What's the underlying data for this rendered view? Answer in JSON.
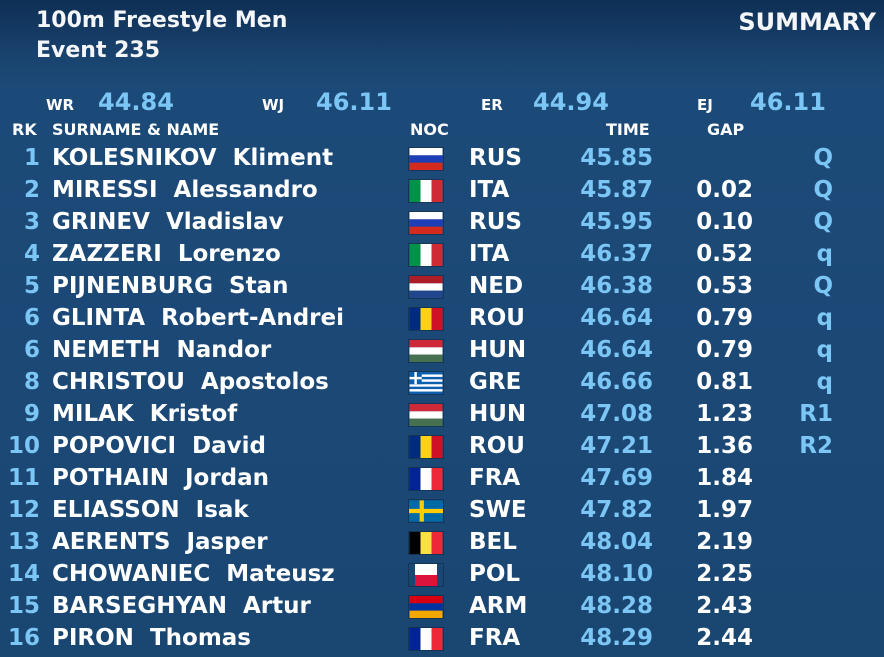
{
  "header": {
    "title": "100m Freestyle Men",
    "event": "Event 235",
    "summary": "SUMMARY"
  },
  "records": [
    {
      "label": "WR",
      "value": "44.84"
    },
    {
      "label": "WJ",
      "value": "46.11"
    },
    {
      "label": "ER",
      "value": "44.94"
    },
    {
      "label": "EJ",
      "value": "46.11"
    }
  ],
  "columns": {
    "rk": "RK",
    "name": "SURNAME & NAME",
    "noc": "NOC",
    "time": "TIME",
    "gap": "GAP"
  },
  "rows": [
    {
      "rk": "1",
      "surname": "KOLESNIKOV",
      "first": "Kliment",
      "noc": "RUS",
      "flag": "rus-flag-icon",
      "time": "45.85",
      "gap": "",
      "q": "Q"
    },
    {
      "rk": "2",
      "surname": "MIRESSI",
      "first": "Alessandro",
      "noc": "ITA",
      "flag": "ita-flag-icon",
      "time": "45.87",
      "gap": "0.02",
      "q": "Q"
    },
    {
      "rk": "3",
      "surname": "GRINEV",
      "first": "Vladislav",
      "noc": "RUS",
      "flag": "rus-flag-icon",
      "time": "45.95",
      "gap": "0.10",
      "q": "Q"
    },
    {
      "rk": "4",
      "surname": "ZAZZERI",
      "first": "Lorenzo",
      "noc": "ITA",
      "flag": "ita-flag-icon",
      "time": "46.37",
      "gap": "0.52",
      "q": "q"
    },
    {
      "rk": "5",
      "surname": "PIJNENBURG",
      "first": "Stan",
      "noc": "NED",
      "flag": "ned-flag-icon",
      "time": "46.38",
      "gap": "0.53",
      "q": "Q"
    },
    {
      "rk": "6",
      "surname": "GLINTA",
      "first": "Robert-Andrei",
      "noc": "ROU",
      "flag": "rou-flag-icon",
      "time": "46.64",
      "gap": "0.79",
      "q": "q"
    },
    {
      "rk": "6",
      "surname": "NEMETH",
      "first": "Nandor",
      "noc": "HUN",
      "flag": "hun-flag-icon",
      "time": "46.64",
      "gap": "0.79",
      "q": "q"
    },
    {
      "rk": "8",
      "surname": "CHRISTOU",
      "first": "Apostolos",
      "noc": "GRE",
      "flag": "gre-flag-icon",
      "time": "46.66",
      "gap": "0.81",
      "q": "q"
    },
    {
      "rk": "9",
      "surname": "MILAK",
      "first": "Kristof",
      "noc": "HUN",
      "flag": "hun-flag-icon",
      "time": "47.08",
      "gap": "1.23",
      "q": "R1"
    },
    {
      "rk": "10",
      "surname": "POPOVICI",
      "first": "David",
      "noc": "ROU",
      "flag": "rou-flag-icon",
      "time": "47.21",
      "gap": "1.36",
      "q": "R2"
    },
    {
      "rk": "11",
      "surname": "POTHAIN",
      "first": "Jordan",
      "noc": "FRA",
      "flag": "fra-flag-icon",
      "time": "47.69",
      "gap": "1.84",
      "q": ""
    },
    {
      "rk": "12",
      "surname": "ELIASSON",
      "first": "Isak",
      "noc": "SWE",
      "flag": "swe-flag-icon",
      "time": "47.82",
      "gap": "1.97",
      "q": ""
    },
    {
      "rk": "13",
      "surname": "AERENTS",
      "first": "Jasper",
      "noc": "BEL",
      "flag": "bel-flag-icon",
      "time": "48.04",
      "gap": "2.19",
      "q": ""
    },
    {
      "rk": "14",
      "surname": "CHOWANIEC",
      "first": "Mateusz",
      "noc": "POL",
      "flag": "pol-flag-icon",
      "time": "48.10",
      "gap": "2.25",
      "q": ""
    },
    {
      "rk": "15",
      "surname": "BARSEGHYAN",
      "first": "Artur",
      "noc": "ARM",
      "flag": "arm-flag-icon",
      "time": "48.28",
      "gap": "2.43",
      "q": ""
    },
    {
      "rk": "16",
      "surname": "PIRON",
      "first": "Thomas",
      "noc": "FRA",
      "flag": "fra-flag-icon",
      "time": "48.29",
      "gap": "2.44",
      "q": ""
    }
  ]
}
